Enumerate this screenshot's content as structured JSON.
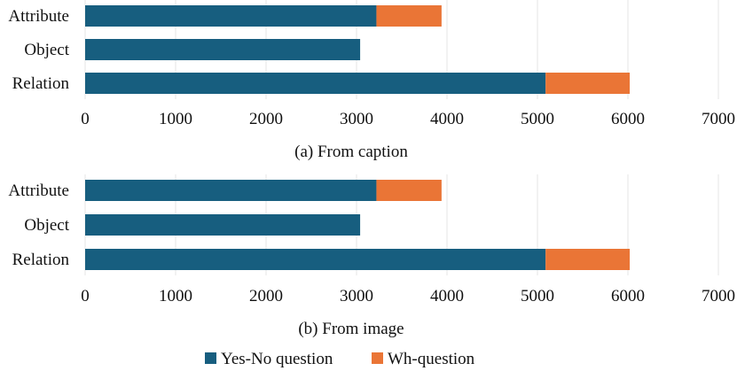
{
  "colors": {
    "yes_no": "#175e7f",
    "wh": "#ea7536"
  },
  "legend": {
    "items": [
      {
        "label": "Yes-No question",
        "color": "#175e7f"
      },
      {
        "label": "Wh-question",
        "color": "#ea7536"
      }
    ]
  },
  "chart_data": [
    {
      "type": "bar",
      "orientation": "horizontal",
      "stacked": true,
      "caption": "(a) From caption",
      "categories": [
        "Attribute",
        "Object",
        "Relation"
      ],
      "series": [
        {
          "name": "Yes-No question",
          "values": [
            3220,
            3040,
            5090
          ]
        },
        {
          "name": "Wh-question",
          "values": [
            720,
            0,
            930
          ]
        }
      ],
      "xlim": [
        0,
        7000
      ],
      "xticks": [
        "0",
        "1000",
        "2000",
        "3000",
        "4000",
        "5000",
        "6000",
        "7000"
      ],
      "grid": true,
      "legend_position": "bottom"
    },
    {
      "type": "bar",
      "orientation": "horizontal",
      "stacked": true,
      "caption": "(b) From image",
      "categories": [
        "Attribute",
        "Object",
        "Relation"
      ],
      "series": [
        {
          "name": "Yes-No question",
          "values": [
            3220,
            3040,
            5090
          ]
        },
        {
          "name": "Wh-question",
          "values": [
            720,
            0,
            930
          ]
        }
      ],
      "xlim": [
        0,
        7000
      ],
      "xticks": [
        "0",
        "1000",
        "2000",
        "3000",
        "4000",
        "5000",
        "6000",
        "7000"
      ],
      "grid": true,
      "legend_position": "bottom"
    }
  ]
}
